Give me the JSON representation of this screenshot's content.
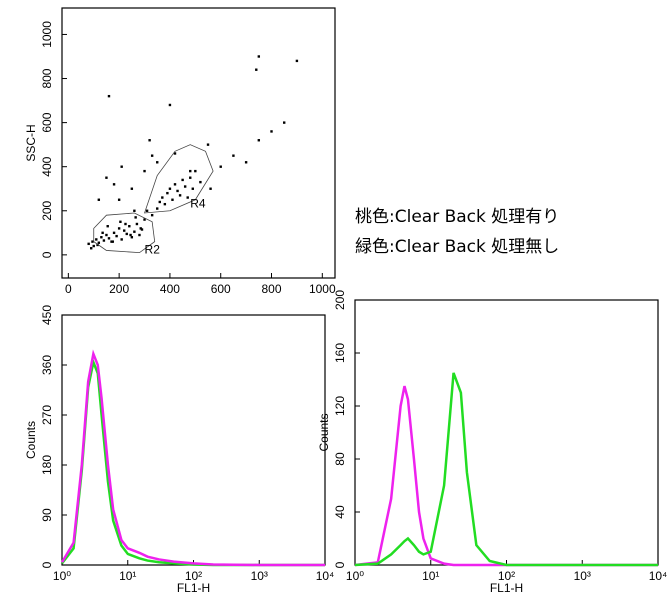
{
  "chart_data": [
    {
      "type": "scatter",
      "ylabel": "SSC-H",
      "x": [
        80,
        95,
        100,
        110,
        120,
        130,
        140,
        150,
        160,
        170,
        180,
        190,
        200,
        210,
        220,
        230,
        240,
        250,
        260,
        270,
        280,
        290,
        300,
        90,
        115,
        135,
        155,
        175,
        205,
        225,
        245,
        265,
        285,
        310,
        330,
        350,
        360,
        370,
        380,
        390,
        400,
        410,
        420,
        430,
        440,
        450,
        460,
        470,
        480,
        490,
        500,
        520,
        200,
        250,
        150,
        300,
        350,
        420,
        550,
        600,
        650,
        700,
        750,
        800,
        850,
        900,
        120,
        180,
        260,
        330,
        480,
        560,
        740,
        750,
        320,
        210,
        160,
        400
      ],
      "y": [
        50,
        60,
        40,
        70,
        55,
        80,
        65,
        90,
        75,
        60,
        100,
        85,
        120,
        70,
        110,
        95,
        130,
        80,
        105,
        140,
        90,
        115,
        160,
        30,
        45,
        100,
        130,
        60,
        150,
        140,
        90,
        170,
        120,
        200,
        180,
        210,
        240,
        260,
        230,
        280,
        300,
        250,
        320,
        290,
        270,
        340,
        310,
        260,
        350,
        300,
        380,
        330,
        250,
        300,
        350,
        380,
        420,
        460,
        500,
        400,
        450,
        420,
        520,
        560,
        600,
        880,
        250,
        320,
        200,
        450,
        380,
        300,
        840,
        900,
        520,
        400,
        720,
        680
      ],
      "color": "#000000",
      "xlim": [
        -25,
        1050
      ],
      "ylim": [
        -105,
        1120
      ],
      "xticks": [
        0,
        200,
        400,
        600,
        800,
        1000
      ],
      "yticks": [
        0,
        200,
        400,
        600,
        800,
        1000
      ],
      "regions": [
        {
          "label": "R2",
          "points": [
            [
              100,
              60
            ],
            [
              150,
              20
            ],
            [
              280,
              10
            ],
            [
              340,
              60
            ],
            [
              330,
              150
            ],
            [
              260,
              190
            ],
            [
              150,
              180
            ],
            [
              100,
              120
            ]
          ]
        },
        {
          "label": "R4",
          "points": [
            [
              300,
              190
            ],
            [
              350,
              360
            ],
            [
              420,
              470
            ],
            [
              480,
              500
            ],
            [
              540,
              470
            ],
            [
              570,
              380
            ],
            [
              500,
              250
            ],
            [
              400,
              200
            ]
          ]
        }
      ],
      "annotations": [
        {
          "text": "R4",
          "x": 480,
          "y": 230
        },
        {
          "text": "R2",
          "x": 300,
          "y": 20
        }
      ]
    },
    {
      "type": "line",
      "log_x": true,
      "xlabel": "FL1-H",
      "ylabel": "Counts",
      "x": [
        1,
        1.5,
        2,
        2.5,
        3,
        3.5,
        4,
        5,
        6,
        8,
        10,
        15,
        20,
        30,
        50,
        100,
        200,
        1000,
        10000
      ],
      "series": [
        {
          "name": "green",
          "color": "#22dd22",
          "values": [
            3,
            30,
            170,
            320,
            365,
            345,
            270,
            150,
            80,
            35,
            20,
            12,
            8,
            5,
            3,
            1,
            0,
            0,
            0
          ]
        },
        {
          "name": "magenta",
          "color": "#ee22ee",
          "values": [
            5,
            40,
            180,
            330,
            380,
            360,
            300,
            180,
            100,
            45,
            30,
            22,
            15,
            10,
            6,
            3,
            1,
            0,
            0
          ]
        }
      ],
      "xlim": [
        1,
        10000
      ],
      "ylim": [
        0,
        450
      ],
      "xticks": [
        {
          "value": 1,
          "label": "10⁰"
        },
        {
          "value": 10,
          "label": "10¹"
        },
        {
          "value": 100,
          "label": "10²"
        },
        {
          "value": 1000,
          "label": "10³"
        },
        {
          "value": 10000,
          "label": "10⁴"
        }
      ],
      "yticks": [
        0,
        90,
        180,
        270,
        360,
        450
      ]
    },
    {
      "type": "line",
      "log_x": true,
      "xlabel": "FL1-H",
      "ylabel": "Counts",
      "x": [
        1,
        2,
        3,
        4,
        4.5,
        5,
        6,
        7,
        8,
        10,
        15,
        20,
        25,
        30,
        40,
        60,
        100,
        1000,
        10000
      ],
      "series": [
        {
          "name": "magenta",
          "color": "#ee22ee",
          "values": [
            0,
            2,
            50,
            120,
            135,
            125,
            80,
            40,
            20,
            5,
            1,
            0,
            0,
            0,
            0,
            0,
            0,
            0,
            0
          ]
        },
        {
          "name": "green",
          "color": "#22dd22",
          "values": [
            0,
            1,
            8,
            15,
            18,
            20,
            15,
            10,
            8,
            10,
            60,
            145,
            130,
            70,
            15,
            3,
            0,
            0,
            0
          ]
        }
      ],
      "xlim": [
        1,
        10000
      ],
      "ylim": [
        0,
        200
      ],
      "xticks": [
        {
          "value": 1,
          "label": "10⁰"
        },
        {
          "value": 10,
          "label": "10¹"
        },
        {
          "value": 100,
          "label": "10²"
        },
        {
          "value": 1000,
          "label": "10³"
        },
        {
          "value": 10000,
          "label": "10⁴"
        }
      ],
      "yticks": [
        0,
        40,
        80,
        120,
        160,
        200
      ]
    }
  ],
  "legend_text": [
    "桃色:Clear Back 処理有り",
    "緑色:Clear Back 処理無し"
  ]
}
